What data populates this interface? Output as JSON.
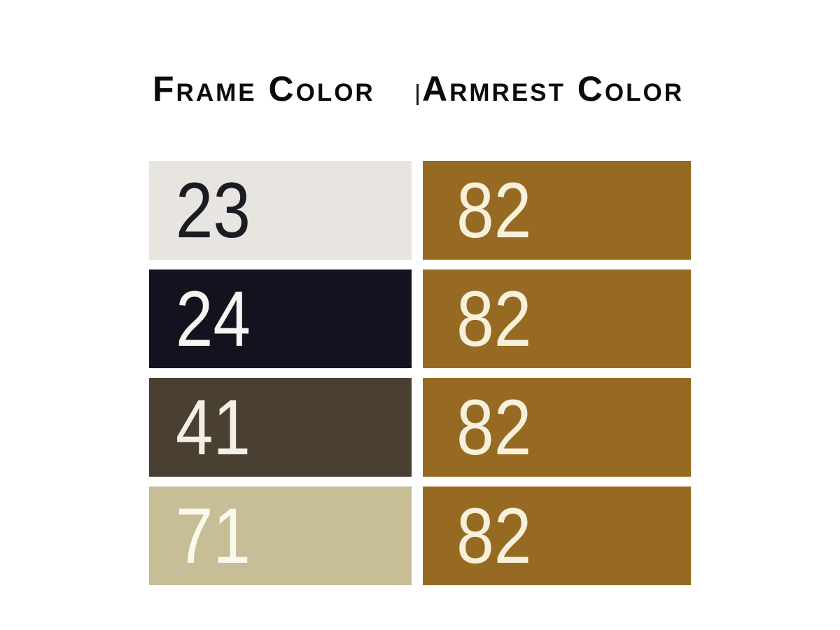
{
  "page": {
    "background": "#ffffff",
    "header_text_color": "#0b0b0b",
    "header_divider_color": "#1a1a1a"
  },
  "headers": {
    "frame": "Frame Color",
    "armrest": "Armrest Color"
  },
  "rows": [
    {
      "frame": {
        "code": "23",
        "bg": "#e8e5e0",
        "fg": "#1b1b22"
      },
      "armrest": {
        "code": "82",
        "bg": "#976a24",
        "fg": "#f7f0da"
      }
    },
    {
      "frame": {
        "code": "24",
        "bg": "#131320",
        "fg": "#f6f5f1"
      },
      "armrest": {
        "code": "82",
        "bg": "#976a24",
        "fg": "#f7f0da"
      }
    },
    {
      "frame": {
        "code": "41",
        "bg": "#4a4032",
        "fg": "#f2efe7"
      },
      "armrest": {
        "code": "82",
        "bg": "#976a24",
        "fg": "#f7f0da"
      }
    },
    {
      "frame": {
        "code": "71",
        "bg": "#c7bd97",
        "fg": "#fbf8ec"
      },
      "armrest": {
        "code": "82",
        "bg": "#976a24",
        "fg": "#f7f0da"
      }
    }
  ]
}
